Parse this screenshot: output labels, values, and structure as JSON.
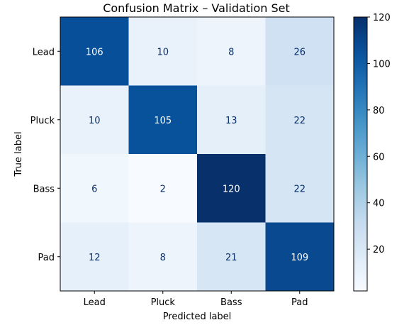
{
  "chart_data": {
    "type": "heatmap",
    "title": "Confusion Matrix – Validation Set",
    "xlabel": "Predicted label",
    "ylabel": "True label",
    "x_categories": [
      "Lead",
      "Pluck",
      "Bass",
      "Pad"
    ],
    "y_categories": [
      "Lead",
      "Pluck",
      "Bass",
      "Pad"
    ],
    "values": [
      [
        106,
        10,
        8,
        26
      ],
      [
        10,
        105,
        13,
        22
      ],
      [
        6,
        2,
        120,
        22
      ],
      [
        12,
        8,
        21,
        109
      ]
    ],
    "colormap": "Blues",
    "color_range": [
      2,
      120
    ],
    "colorbar_ticks": [
      20,
      40,
      60,
      80,
      100,
      120
    ],
    "colorbar_tick_labels": [
      "20",
      "40",
      "60",
      "80",
      "100",
      "120"
    ],
    "grid": false
  }
}
